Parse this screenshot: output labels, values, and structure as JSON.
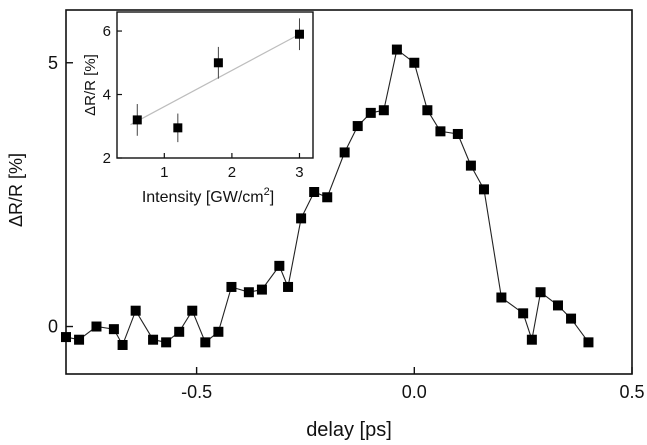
{
  "chart_data": [
    {
      "type": "line",
      "markers": "square",
      "xlabel": "delay [ps]",
      "ylabel": "ΔR/R [%]",
      "xlim": [
        -0.8,
        0.5
      ],
      "ylim": [
        -0.9,
        6.0
      ],
      "xticks": [
        -0.5,
        0.0,
        0.5
      ],
      "xtick_labels": [
        "-0.5",
        "0.0",
        "0.5"
      ],
      "yticks": [
        0,
        5
      ],
      "ytick_labels": [
        "0",
        "5"
      ],
      "grid": false,
      "series": [
        {
          "x": [
            -0.8,
            -0.77,
            -0.73,
            -0.69,
            -0.67,
            -0.64,
            -0.6,
            -0.57,
            -0.54,
            -0.51,
            -0.48,
            -0.45,
            -0.42,
            -0.38,
            -0.35,
            -0.31,
            -0.29,
            -0.26,
            -0.23,
            -0.2,
            -0.16,
            -0.13,
            -0.1,
            -0.07,
            -0.04,
            0.0,
            0.03,
            0.06,
            0.1,
            0.13,
            0.16,
            0.2,
            0.25,
            0.27,
            0.29,
            0.33,
            0.36,
            0.4
          ],
          "y": [
            -0.2,
            -0.25,
            0.0,
            -0.05,
            -0.35,
            0.3,
            -0.25,
            -0.3,
            -0.1,
            0.3,
            -0.3,
            -0.1,
            0.75,
            0.65,
            0.7,
            1.15,
            0.75,
            2.05,
            2.55,
            2.45,
            3.3,
            3.8,
            4.05,
            4.1,
            5.25,
            5.0,
            4.1,
            3.7,
            3.65,
            3.05,
            2.6,
            0.55,
            0.25,
            -0.25,
            0.65,
            0.4,
            0.15,
            -0.3
          ]
        }
      ]
    },
    {
      "type": "scatter",
      "xlabel": "Intensity [GW/cm",
      "xlabel_sup": "2",
      "xlabel_end": "]",
      "ylabel": "ΔR/R [%]",
      "xlim": [
        0.3,
        3.2
      ],
      "ylim": [
        2.0,
        6.6
      ],
      "xticks": [
        1,
        2,
        3
      ],
      "xtick_labels": [
        "1",
        "2",
        "3"
      ],
      "yticks": [
        2,
        4,
        6
      ],
      "ytick_labels": [
        "2",
        "4",
        "6"
      ],
      "grid": false,
      "fit_line": {
        "x": [
          0.5,
          3.0
        ],
        "y": [
          3.05,
          5.9
        ]
      },
      "series": [
        {
          "x": [
            0.6,
            1.2,
            1.8,
            3.0
          ],
          "y": [
            3.2,
            2.95,
            5.0,
            5.9
          ],
          "yerr": [
            0.5,
            0.45,
            0.5,
            0.5
          ]
        }
      ]
    }
  ]
}
